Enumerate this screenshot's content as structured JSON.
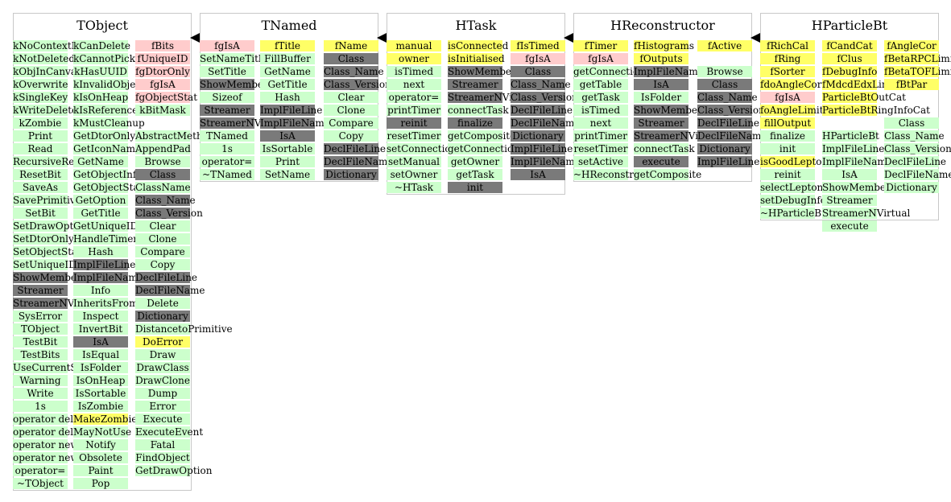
{
  "colors": {
    "g": "#ccffcc",
    "x": "#7a7a7a",
    "p": "#ffcccc",
    "y": "#ffff66",
    "n": "transparent"
  },
  "classes": [
    {
      "title": "TObject",
      "columns": [
        [
          [
            "kNoContextMenu",
            "g"
          ],
          [
            "kNotDeleted",
            "g"
          ],
          [
            "kObjInCanvas",
            "g"
          ],
          [
            "kOverwrite",
            "g"
          ],
          [
            "kSingleKey",
            "g"
          ],
          [
            "kWriteDelete",
            "g"
          ],
          [
            "kZombie",
            "g"
          ],
          [
            "Print",
            "g"
          ],
          [
            "Read",
            "g"
          ],
          [
            "RecursiveRemove",
            "g"
          ],
          [
            "ResetBit",
            "g"
          ],
          [
            "SaveAs",
            "g"
          ],
          [
            "SavePrimitive",
            "g"
          ],
          [
            "SetBit",
            "g"
          ],
          [
            "SetDrawOption",
            "g"
          ],
          [
            "SetDtorOnly",
            "g"
          ],
          [
            "SetObjectStat",
            "g"
          ],
          [
            "SetUniqueID",
            "g"
          ],
          [
            "ShowMembers",
            "x"
          ],
          [
            "Streamer",
            "x"
          ],
          [
            "StreamerNVirtual",
            "x"
          ],
          [
            "SysError",
            "g"
          ],
          [
            "TObject",
            "g"
          ],
          [
            "TestBit",
            "g"
          ],
          [
            "TestBits",
            "g"
          ],
          [
            "UseCurrentStyle",
            "g"
          ],
          [
            "Warning",
            "g"
          ],
          [
            "Write",
            "g"
          ],
          [
            "1s",
            "g"
          ],
          [
            "operator delete",
            "g"
          ],
          [
            "operator delete[]",
            "g"
          ],
          [
            "operator new",
            "g"
          ],
          [
            "operator new[]",
            "g"
          ],
          [
            "operator=",
            "g"
          ],
          [
            "~TObject",
            "g"
          ]
        ],
        [
          [
            "kCanDelete",
            "g"
          ],
          [
            "kCannotPick",
            "g"
          ],
          [
            "kHasUUID",
            "g"
          ],
          [
            "kInvalidObject",
            "g"
          ],
          [
            "kIsOnHeap",
            "g"
          ],
          [
            "kIsReferenced",
            "g"
          ],
          [
            "kMustCleanup",
            "g"
          ],
          [
            "GetDtorOnly",
            "g"
          ],
          [
            "GetIconName",
            "g"
          ],
          [
            "GetName",
            "g"
          ],
          [
            "GetObjectInfo",
            "g"
          ],
          [
            "GetObjectStat",
            "g"
          ],
          [
            "GetOption",
            "g"
          ],
          [
            "GetTitle",
            "g"
          ],
          [
            "GetUniqueID",
            "g"
          ],
          [
            "HandleTimer",
            "g"
          ],
          [
            "Hash",
            "g"
          ],
          [
            "ImplFileLine",
            "x"
          ],
          [
            "ImplFileName",
            "x"
          ],
          [
            "Info",
            "g"
          ],
          [
            "InheritsFrom",
            "g"
          ],
          [
            "Inspect",
            "g"
          ],
          [
            "InvertBit",
            "g"
          ],
          [
            "IsA",
            "x"
          ],
          [
            "IsEqual",
            "g"
          ],
          [
            "IsFolder",
            "g"
          ],
          [
            "IsOnHeap",
            "g"
          ],
          [
            "IsSortable",
            "g"
          ],
          [
            "IsZombie",
            "g"
          ],
          [
            "MakeZombie",
            "y"
          ],
          [
            "MayNotUse",
            "g"
          ],
          [
            "Notify",
            "g"
          ],
          [
            "Obsolete",
            "g"
          ],
          [
            "Paint",
            "g"
          ],
          [
            "Pop",
            "g"
          ]
        ],
        [
          [
            "fBits",
            "p"
          ],
          [
            "fUniqueID",
            "p"
          ],
          [
            "fgDtorOnly",
            "p"
          ],
          [
            "fgIsA",
            "p"
          ],
          [
            "fgObjectStat",
            "p"
          ],
          [
            "kBitMask",
            "g"
          ],
          [
            "",
            "n"
          ],
          [
            "AbstractMethod",
            "g"
          ],
          [
            "AppendPad",
            "g"
          ],
          [
            "Browse",
            "g"
          ],
          [
            "Class",
            "x"
          ],
          [
            "ClassName",
            "g"
          ],
          [
            "Class_Name",
            "x"
          ],
          [
            "Class_Version",
            "x"
          ],
          [
            "Clear",
            "g"
          ],
          [
            "Clone",
            "g"
          ],
          [
            "Compare",
            "g"
          ],
          [
            "Copy",
            "g"
          ],
          [
            "DeclFileLine",
            "x"
          ],
          [
            "DeclFileName",
            "x"
          ],
          [
            "Delete",
            "g"
          ],
          [
            "Dictionary",
            "x"
          ],
          [
            "DistancetoPrimitive",
            "g"
          ],
          [
            "DoError",
            "y"
          ],
          [
            "Draw",
            "g"
          ],
          [
            "DrawClass",
            "g"
          ],
          [
            "DrawClone",
            "g"
          ],
          [
            "Dump",
            "g"
          ],
          [
            "Error",
            "g"
          ],
          [
            "Execute",
            "g"
          ],
          [
            "ExecuteEvent",
            "g"
          ],
          [
            "Fatal",
            "g"
          ],
          [
            "FindObject",
            "g"
          ],
          [
            "GetDrawOption",
            "g"
          ]
        ]
      ]
    },
    {
      "title": "TNamed",
      "columns": [
        [
          [
            "fgIsA",
            "p"
          ],
          [
            "SetNameTitle",
            "g"
          ],
          [
            "SetTitle",
            "g"
          ],
          [
            "ShowMembers",
            "x"
          ],
          [
            "Sizeof",
            "g"
          ],
          [
            "Streamer",
            "x"
          ],
          [
            "StreamerNVirtual",
            "x"
          ],
          [
            "TNamed",
            "g"
          ],
          [
            "1s",
            "g"
          ],
          [
            "operator=",
            "g"
          ],
          [
            "~TNamed",
            "g"
          ]
        ],
        [
          [
            "fTitle",
            "y"
          ],
          [
            "FillBuffer",
            "g"
          ],
          [
            "GetName",
            "g"
          ],
          [
            "GetTitle",
            "g"
          ],
          [
            "Hash",
            "g"
          ],
          [
            "ImplFileLine",
            "x"
          ],
          [
            "ImplFileName",
            "x"
          ],
          [
            "IsA",
            "x"
          ],
          [
            "IsSortable",
            "g"
          ],
          [
            "Print",
            "g"
          ],
          [
            "SetName",
            "g"
          ]
        ],
        [
          [
            "fName",
            "y"
          ],
          [
            "Class",
            "x"
          ],
          [
            "Class_Name",
            "x"
          ],
          [
            "Class_Version",
            "x"
          ],
          [
            "Clear",
            "g"
          ],
          [
            "Clone",
            "g"
          ],
          [
            "Compare",
            "g"
          ],
          [
            "Copy",
            "g"
          ],
          [
            "DeclFileLine",
            "x"
          ],
          [
            "DeclFileName",
            "x"
          ],
          [
            "Dictionary",
            "x"
          ]
        ]
      ]
    },
    {
      "title": "HTask",
      "columns": [
        [
          [
            "manual",
            "y"
          ],
          [
            "owner",
            "y"
          ],
          [
            "isTimed",
            "g"
          ],
          [
            "next",
            "g"
          ],
          [
            "operator=",
            "g"
          ],
          [
            "printTimer",
            "g"
          ],
          [
            "reinit",
            "x"
          ],
          [
            "resetTimer",
            "g"
          ],
          [
            "setConnections",
            "g"
          ],
          [
            "setManual",
            "g"
          ],
          [
            "setOwner",
            "g"
          ],
          [
            "~HTask",
            "g"
          ]
        ],
        [
          [
            "isConnected",
            "y"
          ],
          [
            "isInitialised",
            "y"
          ],
          [
            "ShowMembers",
            "x"
          ],
          [
            "Streamer",
            "x"
          ],
          [
            "StreamerNVirtual",
            "x"
          ],
          [
            "connectTask",
            "g"
          ],
          [
            "finalize",
            "x"
          ],
          [
            "getComposite",
            "g"
          ],
          [
            "getConnections",
            "g"
          ],
          [
            "getOwner",
            "g"
          ],
          [
            "getTask",
            "g"
          ],
          [
            "init",
            "x"
          ]
        ],
        [
          [
            "fIsTimed",
            "y"
          ],
          [
            "fgIsA",
            "p"
          ],
          [
            "Class",
            "x"
          ],
          [
            "Class_Name",
            "x"
          ],
          [
            "Class_Version",
            "x"
          ],
          [
            "DeclFileLine",
            "x"
          ],
          [
            "DeclFileName",
            "x"
          ],
          [
            "Dictionary",
            "x"
          ],
          [
            "ImplFileLine",
            "x"
          ],
          [
            "ImplFileName",
            "x"
          ],
          [
            "IsA",
            "x"
          ]
        ]
      ]
    },
    {
      "title": "HReconstructor",
      "columns": [
        [
          [
            "fTimer",
            "y"
          ],
          [
            "fgIsA",
            "p"
          ],
          [
            "getConnections",
            "g"
          ],
          [
            "getTable",
            "g"
          ],
          [
            "getTask",
            "g"
          ],
          [
            "isTimed",
            "g"
          ],
          [
            "next",
            "g"
          ],
          [
            "printTimer",
            "g"
          ],
          [
            "resetTimer",
            "g"
          ],
          [
            "setActive",
            "g"
          ],
          [
            "~HReconstructor",
            "g"
          ]
        ],
        [
          [
            "fHistograms",
            "y"
          ],
          [
            "fOutputs",
            "y"
          ],
          [
            "ImplFileName",
            "x"
          ],
          [
            "IsA",
            "x"
          ],
          [
            "IsFolder",
            "g"
          ],
          [
            "ShowMembers",
            "x"
          ],
          [
            "Streamer",
            "x"
          ],
          [
            "StreamerNVirtual",
            "x"
          ],
          [
            "connectTask",
            "g"
          ],
          [
            "execute",
            "x"
          ],
          [
            "getComposite",
            "g"
          ]
        ],
        [
          [
            "fActive",
            "y"
          ],
          [
            "",
            "n"
          ],
          [
            "Browse",
            "g"
          ],
          [
            "Class",
            "x"
          ],
          [
            "Class_Name",
            "x"
          ],
          [
            "Class_Version",
            "x"
          ],
          [
            "DeclFileLine",
            "x"
          ],
          [
            "DeclFileName",
            "x"
          ],
          [
            "Dictionary",
            "x"
          ],
          [
            "ImplFileLine",
            "x"
          ]
        ]
      ]
    },
    {
      "title": "HParticleBt",
      "columns": [
        [
          [
            "fRichCal",
            "y"
          ],
          [
            "fRing",
            "y"
          ],
          [
            "fSorter",
            "y"
          ],
          [
            "fdoAngleCorr",
            "y"
          ],
          [
            "fgIsA",
            "p"
          ],
          [
            "foAngleLimit",
            "y"
          ],
          [
            "fillOutput",
            "y"
          ],
          [
            "finalize",
            "g"
          ],
          [
            "init",
            "g"
          ],
          [
            "isGoodLepton",
            "y"
          ],
          [
            "reinit",
            "g"
          ],
          [
            "selectLeptonsBeta",
            "g"
          ],
          [
            "setDebugInfo",
            "g"
          ],
          [
            "~HParticleBt",
            "g"
          ]
        ],
        [
          [
            "fCandCat",
            "y"
          ],
          [
            "fClus",
            "y"
          ],
          [
            "fDebugInfo",
            "y"
          ],
          [
            "fMdcdEdxLimit",
            "y"
          ],
          [
            "ParticleBtOutCat",
            "y"
          ],
          [
            "ParticleBtRingInfoCat",
            "y"
          ],
          [
            "",
            "n"
          ],
          [
            "HParticleBt",
            "g"
          ],
          [
            "ImplFileLine",
            "g"
          ],
          [
            "ImplFileName",
            "g"
          ],
          [
            "IsA",
            "g"
          ],
          [
            "ShowMembers",
            "g"
          ],
          [
            "Streamer",
            "g"
          ],
          [
            "StreamerNVirtual",
            "g"
          ],
          [
            "execute",
            "g"
          ]
        ],
        [
          [
            "fAngleCor",
            "y"
          ],
          [
            "fBetaRPCLimit",
            "y"
          ],
          [
            "fBetaTOFLimit",
            "y"
          ],
          [
            "fBtPar",
            "y"
          ],
          [
            "",
            "n"
          ],
          [
            "",
            "n"
          ],
          [
            "Class",
            "g"
          ],
          [
            "Class_Name",
            "g"
          ],
          [
            "Class_Version",
            "g"
          ],
          [
            "DeclFileLine",
            "g"
          ],
          [
            "DeclFileName",
            "g"
          ],
          [
            "Dictionary",
            "g"
          ]
        ]
      ]
    }
  ]
}
